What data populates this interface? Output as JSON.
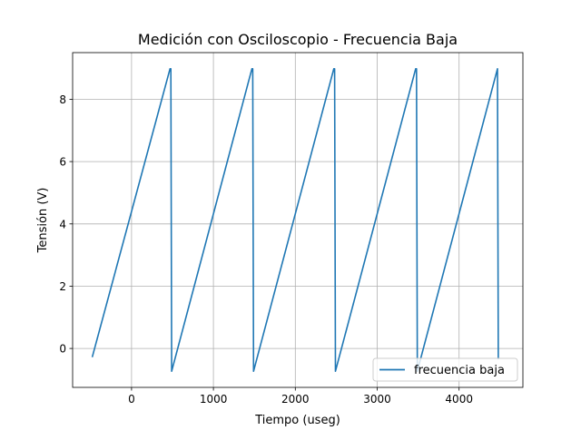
{
  "chart_data": {
    "type": "line",
    "title": "Medición con Osciloscopio  - Frecuencia Baja",
    "xlabel": "Tiempo (useg)",
    "ylabel": "Tensión (V)",
    "xlim": [
      -720,
      4780
    ],
    "ylim": [
      -1.25,
      9.5
    ],
    "xticks": [
      0,
      1000,
      2000,
      3000,
      4000
    ],
    "xtick_labels": [
      "0",
      "1000",
      "2000",
      "3000",
      "4000"
    ],
    "yticks": [
      0,
      2,
      4,
      6,
      8
    ],
    "ytick_labels": [
      "0",
      "2",
      "4",
      "6",
      "8"
    ],
    "grid": true,
    "legend_position": "lower right",
    "series": [
      {
        "name": "frecuencia baja",
        "color": "#1f77b4",
        "x": [
          -480,
          470,
          480,
          490,
          1470,
          1480,
          1490,
          2470,
          2480,
          2490,
          3470,
          3480,
          3490,
          4470,
          4480
        ],
        "y": [
          -0.28,
          8.98,
          8.98,
          -0.73,
          8.98,
          8.98,
          -0.73,
          8.98,
          8.98,
          -0.73,
          8.98,
          8.98,
          -0.73,
          8.98,
          -0.35
        ]
      }
    ]
  }
}
